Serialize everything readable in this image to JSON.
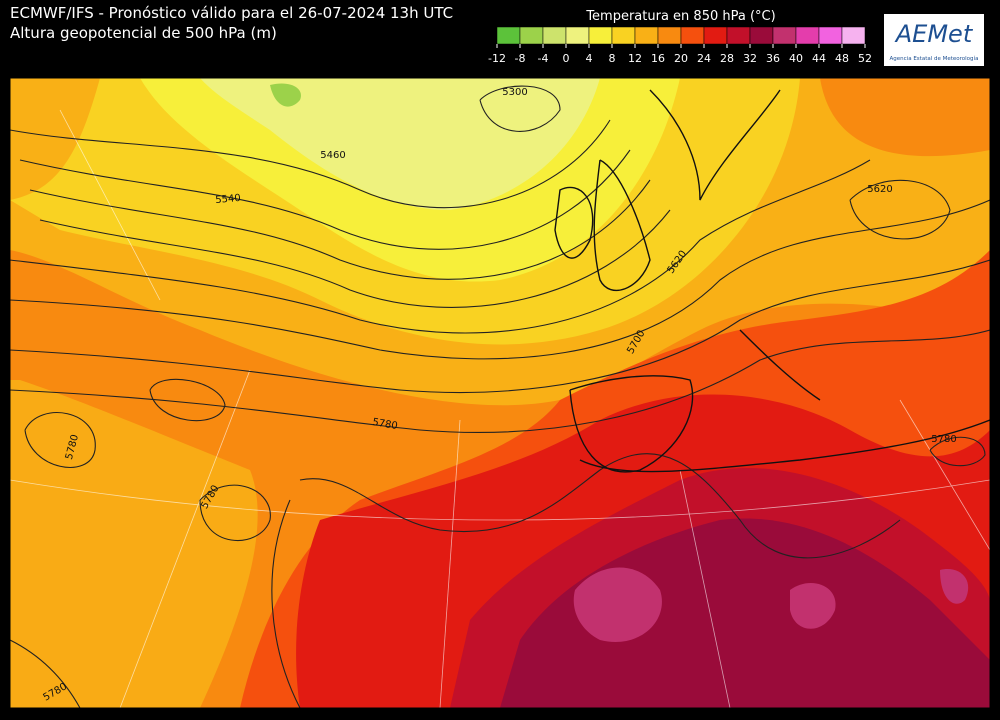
{
  "header": {
    "title": "ECMWF/IFS - Pronóstico válido para el 26-07-2024 13h UTC",
    "subtitle": "Altura geopotencial de 500 hPa (m)"
  },
  "colorbar": {
    "title": "Temperatura en 850 hPa (°C)",
    "ticks": [
      -12,
      -8,
      -4,
      0,
      4,
      8,
      12,
      16,
      20,
      24,
      28,
      32,
      36,
      40,
      44,
      48,
      52
    ],
    "colors": [
      "#5cc23a",
      "#9cd24a",
      "#cde36c",
      "#eef27e",
      "#f7ef3a",
      "#f9d222",
      "#f9b016",
      "#f88a10",
      "#f5500e",
      "#e21b12",
      "#c2102a",
      "#9a0b3a",
      "#c2316e",
      "#e43dac",
      "#f262e0",
      "#f6b2ef"
    ]
  },
  "logo": {
    "name": "AEMet",
    "caption": "Agencia Estatal de Meteorología"
  },
  "contour_labels": [
    "5300",
    "5460",
    "5540",
    "5620",
    "5620",
    "5700",
    "5780",
    "5780",
    "5780",
    "5780",
    "5780"
  ]
}
